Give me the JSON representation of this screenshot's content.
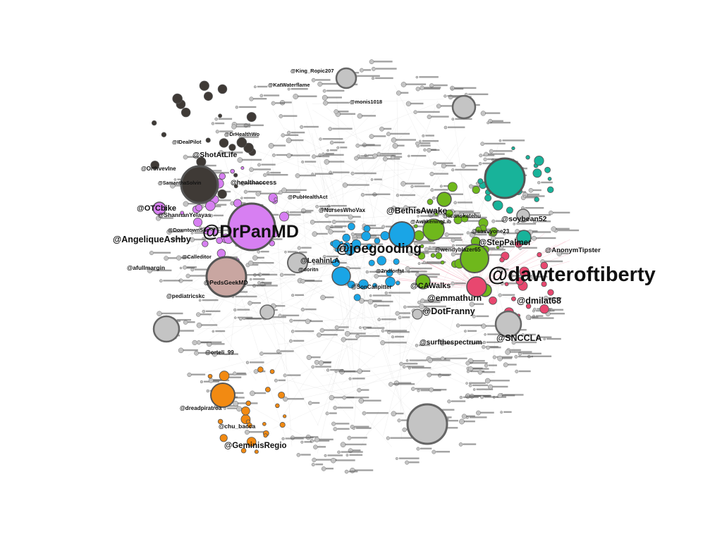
{
  "communities": [
    {
      "name": "magenta",
      "color": "#d77ff2"
    },
    {
      "name": "dark",
      "color": "#3f3a36"
    },
    {
      "name": "rose-brown",
      "color": "#c9a6a1"
    },
    {
      "name": "blue",
      "color": "#1aa5e6"
    },
    {
      "name": "green",
      "color": "#6fb81c"
    },
    {
      "name": "teal",
      "color": "#18b39a"
    },
    {
      "name": "pink",
      "color": "#e8476f"
    },
    {
      "name": "orange",
      "color": "#f28a12"
    },
    {
      "name": "gray",
      "color": "#c4c4c4"
    }
  ],
  "labels": {
    "major": {
      "dawteroftiberty": "@dawteroftiberty",
      "drpanmd": "@DrPanMD",
      "joegooding": "@joegooding"
    },
    "medium": {
      "angeliqueashby": "@AngeliqueAshby",
      "bethisawake": "@BethisAwake",
      "stepalmer": "@StepPalmer",
      "emmathurn": "@emmathurn",
      "dotfranny": "@DotFranny",
      "snccla": "@SNCCLA",
      "dmilat68": "@dmilat68",
      "soybean52": "@soybean52",
      "cawalks": "@CAWalks",
      "leahinla": "@LeahinLA",
      "geminisregio": "@GeminisRegio",
      "otcbike": "@OTCbike",
      "shotatlife": "@ShotAtLife",
      "surfthespectrum": "@surfthespectrum",
      "anonymtipster": "@AnonymTipster"
    },
    "small": {
      "healthaccess": "@healthaccess",
      "shannanyelayas": "@ShannanYelayas",
      "pedsgeekmd": "@PedsGeekMD",
      "afullmargin": "@afullmargin",
      "pediatricskc": "@pediatricskc",
      "orthvevine": "@OrthvevIne",
      "dreadpiratroa": "@dreadpiratroa",
      "chu_bacca": "@chu_bacca",
      "orteli_99": "@orteli_99",
      "nurseswhovax": "@NursesWhoVax",
      "awakeninglib": "@AwakeningLib",
      "icanskatehu": "@icanskatehu",
      "savvyone23": "@savvyone23",
      "wendyblazer65": "@wendyblazer65",
      "soncalipitter": "@SonCalipitter",
      "2ndforfst": "@2ndforfst",
      "doritn": "@doritn",
      "monis1018": "@monis1018",
      "katwaterflame": "@KatWaterflame",
      "king_ropic207": "@King_Ropic207",
      "pubhealthact": "@PubHealthAct",
      "downtownsac": "@DowntownSac",
      "callpolice": "@Calleditor",
      "samanthasolvin": "@SamanthaSolvin",
      "idealpilot": "@IDealPilot",
      "drhealthwo": "@DrHealthWo"
    }
  }
}
